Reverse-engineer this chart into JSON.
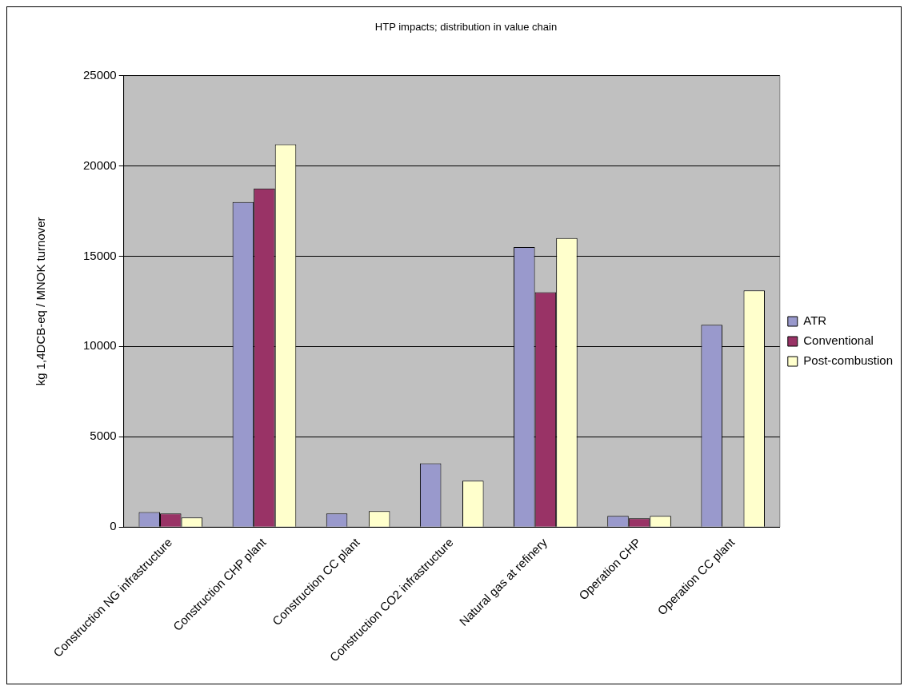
{
  "chart_data": {
    "type": "bar",
    "title": "HTP impacts; distribution in value chain",
    "ylabel": "kg 1,4DCB-eq / MNOK turnover",
    "categories": [
      "Construction NG infrastructure",
      "Construction CHP plant",
      "Construction CC plant",
      "Construction CO2 infrastructure",
      "Natural gas at refinery",
      "Operation CHP",
      "Operation CC plant"
    ],
    "series": [
      {
        "name": "ATR",
        "color": "#9999cc",
        "values": [
          830,
          18000,
          750,
          3530,
          15500,
          610,
          11200
        ]
      },
      {
        "name": "Conventional",
        "color": "#993366",
        "values": [
          750,
          18750,
          null,
          null,
          13000,
          480,
          null
        ]
      },
      {
        "name": "Post-combustion",
        "color": "#ffffcc",
        "values": [
          530,
          21200,
          880,
          2560,
          16000,
          610,
          13100
        ]
      }
    ],
    "ylim": [
      0,
      25000
    ],
    "yticks": [
      0,
      5000,
      10000,
      15000,
      20000,
      25000
    ],
    "grid": "y",
    "legend": "right"
  }
}
